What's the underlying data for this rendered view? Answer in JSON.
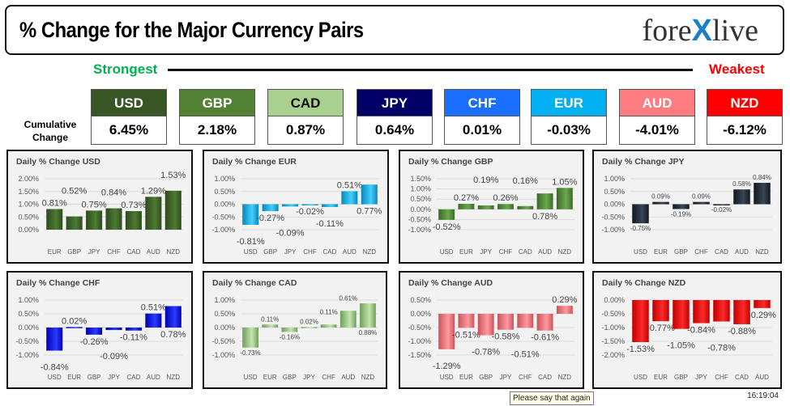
{
  "header": {
    "title": "% Change for the Major Currency Pairs",
    "logo": "forexlive"
  },
  "strongest": "Strongest",
  "weakest": "Weakest",
  "cumulative_label": "Cumulative Change",
  "currencies": [
    {
      "name": "USD",
      "value": "6.45%",
      "color": "#375623",
      "text": "#ffffff"
    },
    {
      "name": "GBP",
      "value": "2.18%",
      "color": "#548235",
      "text": "#ffffff"
    },
    {
      "name": "CAD",
      "value": "0.87%",
      "color": "#a9d08e",
      "text": "#111111"
    },
    {
      "name": "JPY",
      "value": "0.64%",
      "color": "#000066",
      "text": "#ffffff"
    },
    {
      "name": "CHF",
      "value": "0.01%",
      "color": "#1a6fff",
      "text": "#ffffff"
    },
    {
      "name": "EUR",
      "value": "-0.03%",
      "color": "#00b0f0",
      "text": "#ffffff"
    },
    {
      "name": "AUD",
      "value": "-4.01%",
      "color": "#ff7c80",
      "text": "#ffffff"
    },
    {
      "name": "NZD",
      "value": "-6.12%",
      "color": "#ff0000",
      "text": "#ffffff"
    }
  ],
  "chart_data": [
    {
      "type": "bar",
      "title": "Daily % Change USD",
      "categories": [
        "EUR",
        "GBP",
        "JPY",
        "CHF",
        "CAD",
        "AUD",
        "NZD"
      ],
      "values": [
        0.81,
        0.52,
        0.75,
        0.84,
        0.73,
        1.29,
        1.53
      ],
      "ylim": [
        0,
        2
      ],
      "yticks": [
        "0.00%",
        "0.50%",
        "1.00%",
        "1.50%",
        "2.00%"
      ],
      "color": [
        "#2f4a1e",
        "#4d7a33"
      ],
      "big": true
    },
    {
      "type": "bar",
      "title": "Daily % Change EUR",
      "categories": [
        "USD",
        "GBP",
        "JPY",
        "CHF",
        "CAD",
        "AUD",
        "NZD"
      ],
      "values": [
        -0.81,
        -0.27,
        -0.09,
        -0.02,
        -0.11,
        0.51,
        0.77
      ],
      "ylim": [
        -1,
        1
      ],
      "yticks": [
        "-1.00%",
        "-0.50%",
        "0.00%",
        "0.50%",
        "1.00%"
      ],
      "color": [
        "#0a87b8",
        "#3fd0ff"
      ],
      "big": true
    },
    {
      "type": "bar",
      "title": "Daily % Change GBP",
      "categories": [
        "USD",
        "EUR",
        "JPY",
        "CHF",
        "CAD",
        "AUD",
        "NZD"
      ],
      "values": [
        -0.52,
        0.27,
        0.19,
        0.26,
        0.16,
        0.78,
        1.05
      ],
      "ylim": [
        -1,
        1.5
      ],
      "yticks": [
        "-1.00%",
        "-0.50%",
        "0.00%",
        "0.50%",
        "1.00%",
        "1.50%"
      ],
      "color": [
        "#3c6b26",
        "#6aa84f"
      ],
      "big": true
    },
    {
      "type": "bar",
      "title": "Daily % Change JPY",
      "categories": [
        "USD",
        "EUR",
        "GBP",
        "CHF",
        "CAD",
        "AUD",
        "NZD"
      ],
      "values": [
        -0.75,
        0.09,
        -0.19,
        0.09,
        -0.02,
        0.58,
        0.84
      ],
      "ylim": [
        -1,
        1
      ],
      "yticks": [
        "-1.00%",
        "-0.50%",
        "0.00%",
        "0.50%",
        "1.00%"
      ],
      "color": [
        "#111820",
        "#3a4656"
      ],
      "big": false
    },
    {
      "type": "bar",
      "title": "Daily % Change CHF",
      "categories": [
        "USD",
        "EUR",
        "GBP",
        "JPY",
        "CAD",
        "AUD",
        "NZD"
      ],
      "values": [
        -0.84,
        0.02,
        -0.26,
        -0.09,
        -0.11,
        0.51,
        0.78
      ],
      "ylim": [
        -1,
        1
      ],
      "yticks": [
        "-1.00%",
        "-0.50%",
        "0.00%",
        "0.50%",
        "1.00%"
      ],
      "color": [
        "#0000b0",
        "#2a3cff"
      ],
      "big": true
    },
    {
      "type": "bar",
      "title": "Daily % Change CAD",
      "categories": [
        "USD",
        "EUR",
        "GBP",
        "JPY",
        "CHF",
        "AUD",
        "NZD"
      ],
      "values": [
        -0.73,
        0.11,
        -0.16,
        0.02,
        0.11,
        0.61,
        0.88
      ],
      "ylim": [
        -1,
        1
      ],
      "yticks": [
        "-1.00%",
        "-0.50%",
        "0.00%",
        "0.50%",
        "1.00%"
      ],
      "color": [
        "#6f9e5a",
        "#c5e5b0"
      ],
      "big": false
    },
    {
      "type": "bar",
      "title": "Daily % Change AUD",
      "categories": [
        "USD",
        "EUR",
        "GBP",
        "JPY",
        "CHF",
        "CAD",
        "NZD"
      ],
      "values": [
        -1.29,
        -0.51,
        -0.78,
        -0.58,
        -0.51,
        -0.61,
        0.29
      ],
      "ylim": [
        -1.5,
        0.5
      ],
      "yticks": [
        "-1.50%",
        "-1.00%",
        "-0.50%",
        "0.00%",
        "0.50%"
      ],
      "color": [
        "#c9545a",
        "#ff9aa0"
      ],
      "big": true
    },
    {
      "type": "bar",
      "title": "Daily % Change NZD",
      "categories": [
        "USD",
        "EUR",
        "GBP",
        "JPY",
        "CHF",
        "CAD",
        "AUD"
      ],
      "values": [
        -1.53,
        -0.77,
        -1.05,
        -0.84,
        -0.78,
        -0.88,
        -0.29
      ],
      "ylim": [
        -2,
        0
      ],
      "yticks": [
        "-2.00%",
        "-1.50%",
        "-1.00%",
        "-0.50%",
        "0.00%"
      ],
      "color": [
        "#c00000",
        "#ff2a2a"
      ],
      "big": true
    }
  ],
  "tooltip": "Please say that again",
  "timestamp": "16:19:04"
}
